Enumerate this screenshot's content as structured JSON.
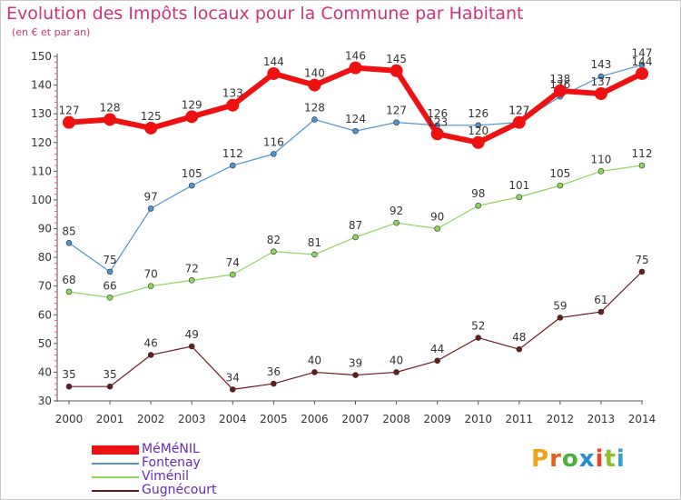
{
  "title": "Evolution des Impôts locaux pour la Commune par Habitant",
  "subtitle": "(en € et par an)",
  "logo": {
    "letters": [
      "P",
      "r",
      "o",
      "x",
      "i",
      "t",
      "i"
    ],
    "colors": [
      "#f0a21c",
      "#e95d1c",
      "#4cae3c",
      "#1d8fd8",
      "#e8452a",
      "#8cbf2a",
      "#33a0d6"
    ]
  },
  "chart_data": {
    "type": "line",
    "title": "Evolution des Impôts locaux pour la Commune par Habitant",
    "ylabel": "",
    "xlabel": "",
    "x": [
      "2000",
      "2001",
      "2002",
      "2003",
      "2004",
      "2005",
      "2006",
      "2007",
      "2008",
      "2009",
      "2010",
      "2011",
      "2012",
      "2013",
      "2014"
    ],
    "ylim": [
      30,
      150
    ],
    "yticks": [
      30,
      40,
      50,
      60,
      70,
      80,
      90,
      100,
      110,
      120,
      130,
      140,
      150
    ],
    "grid": false,
    "legend_position": "bottom-left",
    "series": [
      {
        "name": "Gugnécourt",
        "color": "#6b1a1c",
        "width": 1.2,
        "marker": 3,
        "values": [
          35,
          35,
          46,
          49,
          34,
          36,
          40,
          39,
          40,
          44,
          52,
          48,
          59,
          61,
          75
        ]
      },
      {
        "name": "Viménil",
        "color": "#8cd65a",
        "width": 1.2,
        "marker": 3,
        "values": [
          68,
          66,
          70,
          72,
          74,
          82,
          81,
          87,
          92,
          90,
          98,
          101,
          105,
          110,
          112
        ]
      },
      {
        "name": "Fontenay",
        "color": "#4f94cf",
        "width": 1.2,
        "marker": 3,
        "values": [
          85,
          75,
          97,
          105,
          112,
          116,
          128,
          124,
          127,
          126,
          126,
          127,
          136,
          143,
          147
        ]
      },
      {
        "name": "MéMéNIL",
        "color": "#ee1111",
        "width": 6,
        "marker": 7,
        "values": [
          127,
          128,
          125,
          129,
          133,
          144,
          140,
          146,
          145,
          123,
          120,
          127,
          138,
          137,
          144
        ]
      }
    ]
  }
}
